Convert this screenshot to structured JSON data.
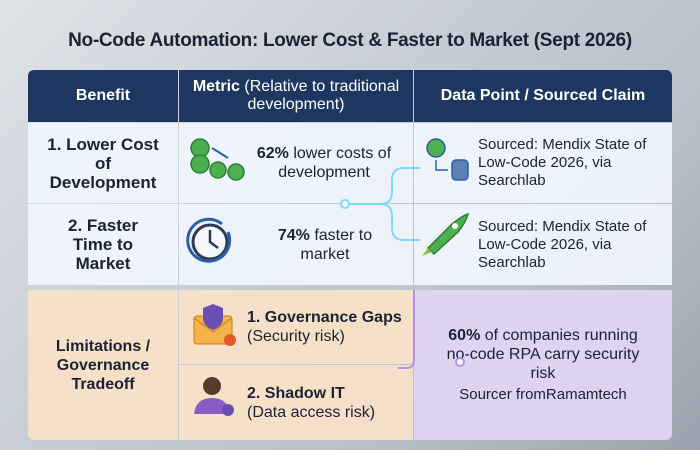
{
  "title": "No-Code Automation: Lower Cost & Faster to Market (Sept 2026)",
  "table": {
    "headers": [
      {
        "bold": "Benefit"
      },
      {
        "bold": "Metric",
        "rest": "(Relative to traditional development)"
      },
      {
        "bold": "Data Point / Sourced Claim"
      }
    ],
    "rows": [
      {
        "benefit": "1. Lower Cost of Development",
        "metric_bold": "62%",
        "metric_rest": "lower costs of development",
        "source": "Sourced: Mendix State of Low-Code 2026, via Searchlab"
      },
      {
        "benefit": "2. Faster Time to Market",
        "metric_bold": "74%",
        "metric_rest": "faster to market",
        "source": "Sourced: Mendix State of Low-Code 2026, via Searchlab"
      }
    ]
  },
  "limitations": {
    "label": "Limitations / Governance Tradeoff",
    "items": [
      {
        "title": "1. Governance Gaps",
        "note": "(Security risk)"
      },
      {
        "title": "2. Shadow IT",
        "note": "(Data access risk)"
      }
    ],
    "claim_bold": "60%",
    "claim_rest": "of companies running no-code RPA carry security risk",
    "source": "Sourcer fromRamamtech"
  }
}
